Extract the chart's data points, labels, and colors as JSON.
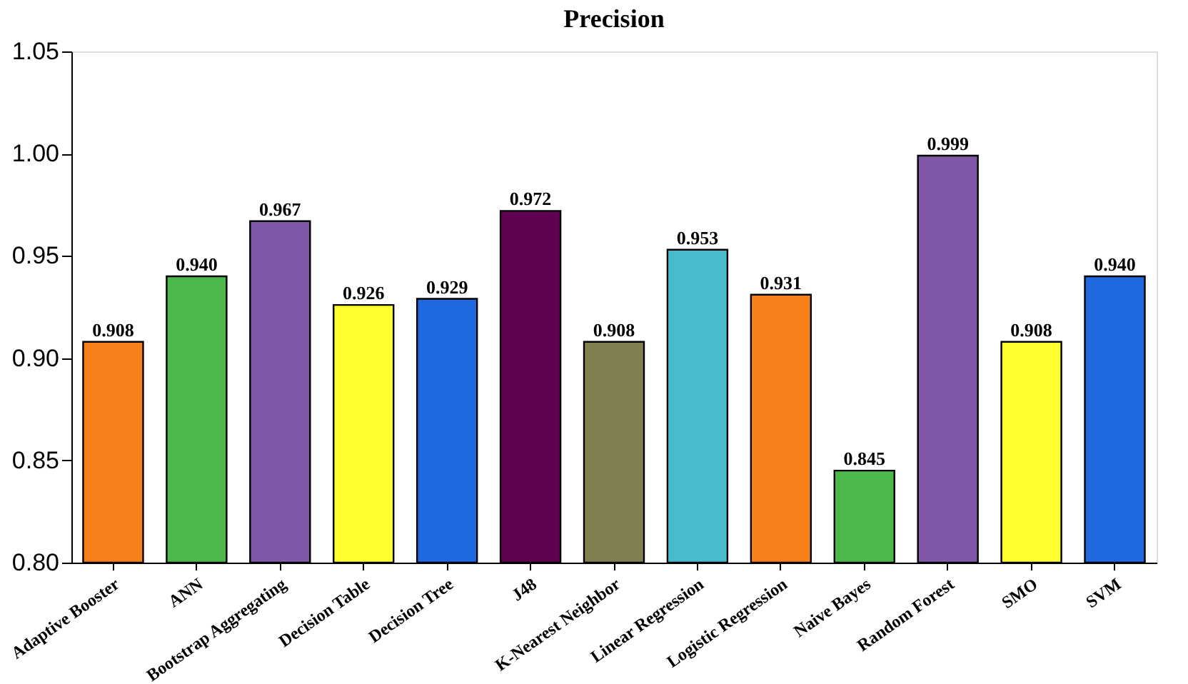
{
  "chart_data": {
    "type": "bar",
    "title": "Precision",
    "categories": [
      "Adaptive Booster",
      "ANN",
      "Bootstrap Aggregating",
      "Decision Table",
      "Decision Tree",
      "J48",
      "K-Nearest Neighbor",
      "Linear Regression",
      "Logistic Regression",
      "Naive Bayes",
      "Random Forest",
      "SMO",
      "SVM"
    ],
    "values": [
      0.908,
      0.94,
      0.967,
      0.926,
      0.929,
      0.972,
      0.908,
      0.953,
      0.931,
      0.845,
      0.999,
      0.908,
      0.94
    ],
    "colors": [
      "#f8801a",
      "#4cb84c",
      "#8058a8",
      "#ffff30",
      "#2068e0",
      "#600050",
      "#808050",
      "#48bccc",
      "#f8801a",
      "#4cb84c",
      "#8058a8",
      "#ffff30",
      "#2068e0"
    ],
    "ylim": [
      0.8,
      1.05
    ],
    "yticks": [
      {
        "value": 0.8,
        "label": "0.80"
      },
      {
        "value": 0.85,
        "label": "0.85"
      },
      {
        "value": 0.9,
        "label": "0.90"
      },
      {
        "value": 0.95,
        "label": "0.95"
      },
      {
        "value": 1.0,
        "label": "1.00"
      },
      {
        "value": 1.05,
        "label": "1.05"
      }
    ],
    "value_labels": [
      "0.908",
      "0.940",
      "0.967",
      "0.926",
      "0.929",
      "0.972",
      "0.908",
      "0.953",
      "0.931",
      "0.845",
      "0.999",
      "0.908",
      "0.940"
    ],
    "grid": false
  }
}
